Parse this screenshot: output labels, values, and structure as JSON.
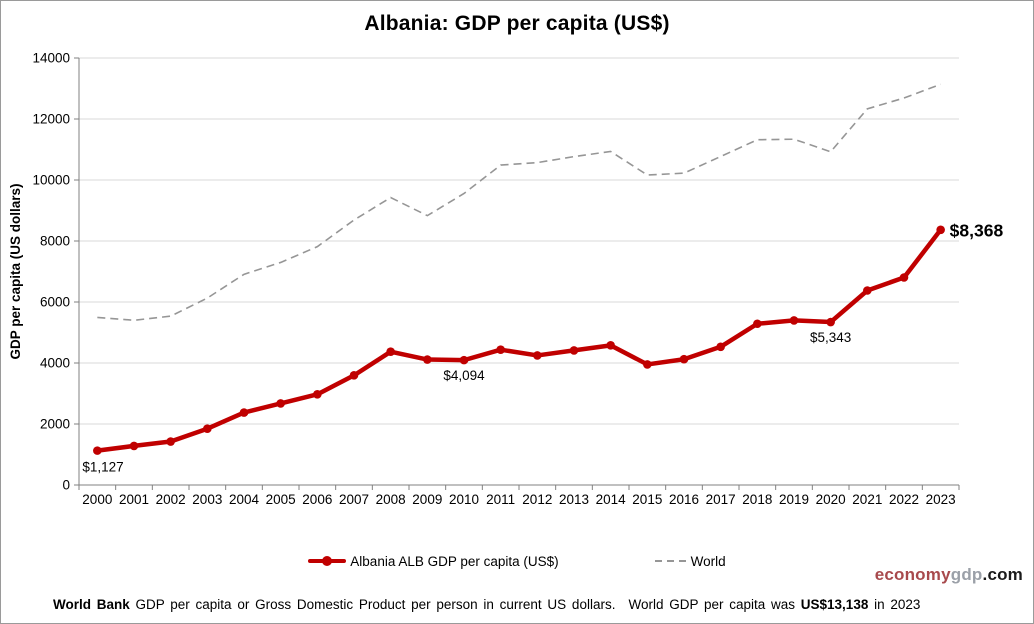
{
  "chart_data": {
    "type": "line",
    "title": "Albania: GDP per capita (US$)",
    "ylabel": "GDP per capita (US dollars)",
    "xlabel": "",
    "ylim": [
      0,
      14000
    ],
    "ytick_step": 2000,
    "grid": true,
    "legend_position": "bottom",
    "categories": [
      "2000",
      "2001",
      "2002",
      "2003",
      "2004",
      "2005",
      "2006",
      "2007",
      "2008",
      "2009",
      "2010",
      "2011",
      "2012",
      "2013",
      "2014",
      "2015",
      "2016",
      "2017",
      "2018",
      "2019",
      "2020",
      "2021",
      "2022",
      "2023"
    ],
    "series": [
      {
        "name": "Albania ALB GDP per capita (US$)",
        "color": "#C00000",
        "style": "solid",
        "marker": "circle",
        "values": [
          1127,
          1282,
          1425,
          1846,
          2374,
          2674,
          2973,
          3595,
          4371,
          4114,
          4094,
          4437,
          4248,
          4413,
          4579,
          3953,
          4124,
          4531,
          5287,
          5396,
          5343,
          6377,
          6803,
          8368
        ]
      },
      {
        "name": "World",
        "color": "#969696",
        "style": "dashed",
        "marker": "none",
        "values": [
          5494,
          5401,
          5536,
          6129,
          6908,
          7297,
          7815,
          8688,
          9424,
          8832,
          9558,
          10489,
          10570,
          10768,
          10935,
          10163,
          10225,
          10770,
          11320,
          11337,
          10926,
          12333,
          12688,
          13138
        ]
      }
    ],
    "annotations": [
      {
        "text": "$1,127",
        "year": "2000",
        "series": 0,
        "position": "below-left",
        "bold": false
      },
      {
        "text": "$4,094",
        "year": "2010",
        "series": 0,
        "position": "below",
        "bold": false
      },
      {
        "text": "$5,343",
        "year": "2020",
        "series": 0,
        "position": "below",
        "bold": false
      },
      {
        "text": "$8,368",
        "year": "2023",
        "series": 0,
        "position": "right",
        "bold": true
      }
    ]
  },
  "branding": {
    "part1": "economy",
    "part2": "gdp",
    "part3": ".com",
    "color1": "#A84A4D",
    "color2": "#9BA0A8",
    "color3": "#1A1A1A"
  },
  "footer": {
    "bold_prefix": "World Bank",
    "text1": " GDP per capita or Gross Domestic Product per person in current US dollars.",
    "text2": "World GDP per capita was ",
    "bold_value": "US$13,138",
    "suffix": " in 2023"
  }
}
